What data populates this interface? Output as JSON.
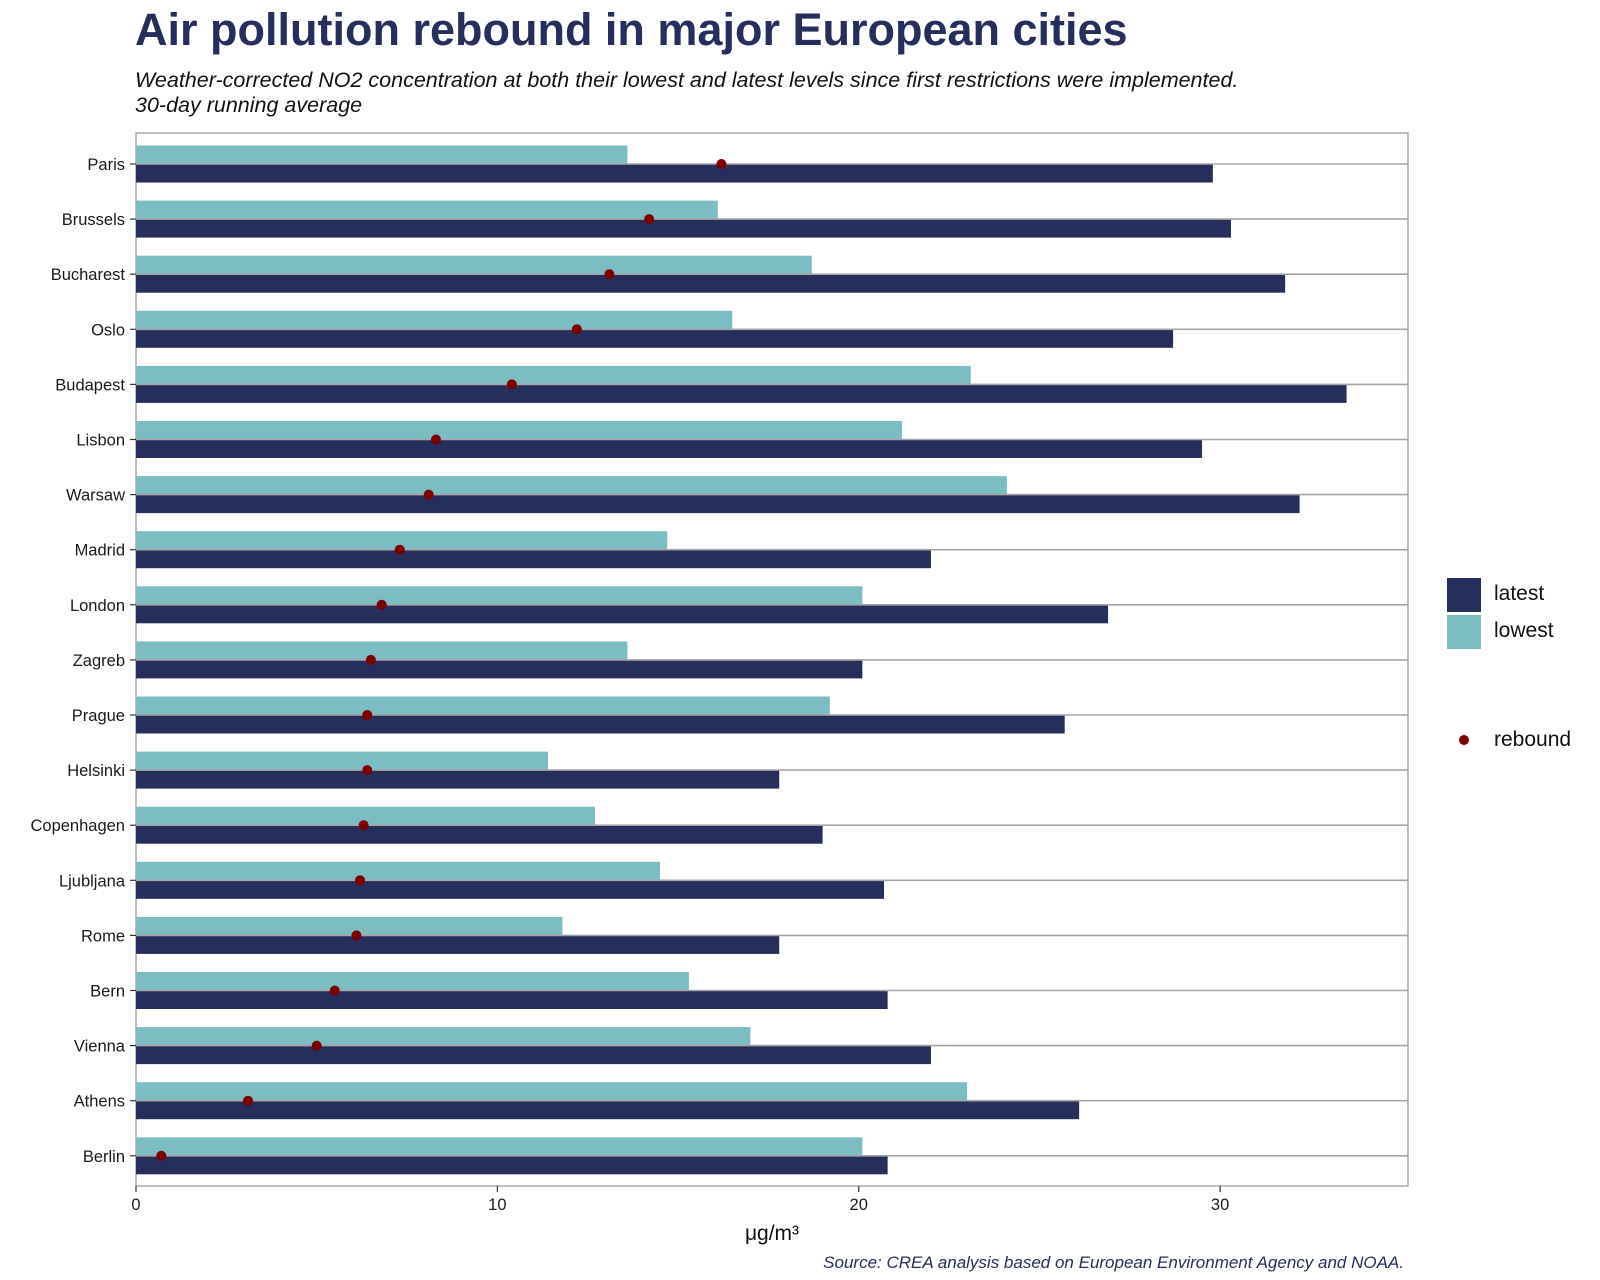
{
  "chart_data": {
    "type": "bar",
    "orientation": "horizontal",
    "title": "Air pollution rebound in major European cities",
    "subtitle_lines": [
      "Weather-corrected NO2 concentration at both their lowest and latest levels since first restrictions were implemented.",
      "30-day running average"
    ],
    "xlabel": "μg/m³",
    "ylabel": "",
    "xlim": [
      0,
      35.2
    ],
    "x_ticks": [
      0,
      10,
      20,
      30
    ],
    "categories": [
      "Paris",
      "Brussels",
      "Bucharest",
      "Oslo",
      "Budapest",
      "Lisbon",
      "Warsaw",
      "Madrid",
      "London",
      "Zagreb",
      "Prague",
      "Helsinki",
      "Copenhagen",
      "Ljubljana",
      "Rome",
      "Bern",
      "Vienna",
      "Athens",
      "Berlin"
    ],
    "series": [
      {
        "name": "latest",
        "color": "#262e5c",
        "values": [
          29.8,
          30.3,
          31.8,
          28.7,
          33.5,
          29.5,
          32.2,
          22.0,
          26.9,
          20.1,
          25.7,
          17.8,
          19.0,
          20.7,
          17.8,
          20.8,
          22.0,
          26.1,
          20.8
        ]
      },
      {
        "name": "lowest",
        "color": "#7cbdc4",
        "values": [
          13.6,
          16.1,
          18.7,
          16.5,
          23.1,
          21.2,
          24.1,
          14.7,
          20.1,
          13.6,
          19.2,
          11.4,
          12.7,
          14.5,
          11.8,
          15.3,
          17.0,
          23.0,
          20.1
        ]
      },
      {
        "name": "rebound",
        "type": "point",
        "color": "#7d0000",
        "values": [
          16.2,
          14.2,
          13.1,
          12.2,
          10.4,
          8.3,
          8.1,
          7.3,
          6.8,
          6.5,
          6.4,
          6.4,
          6.3,
          6.2,
          6.1,
          5.5,
          5.0,
          3.1,
          0.7
        ]
      }
    ],
    "grid": "horizontal",
    "legend_position": "right",
    "legend": [
      {
        "label": "latest",
        "color": "#262e5c",
        "kind": "box"
      },
      {
        "label": "lowest",
        "color": "#7cbdc4",
        "kind": "box"
      },
      {
        "label": "rebound",
        "color": "#7d0000",
        "kind": "point"
      }
    ],
    "source": "Source: CREA analysis based on European Environment Agency and NOAA."
  }
}
